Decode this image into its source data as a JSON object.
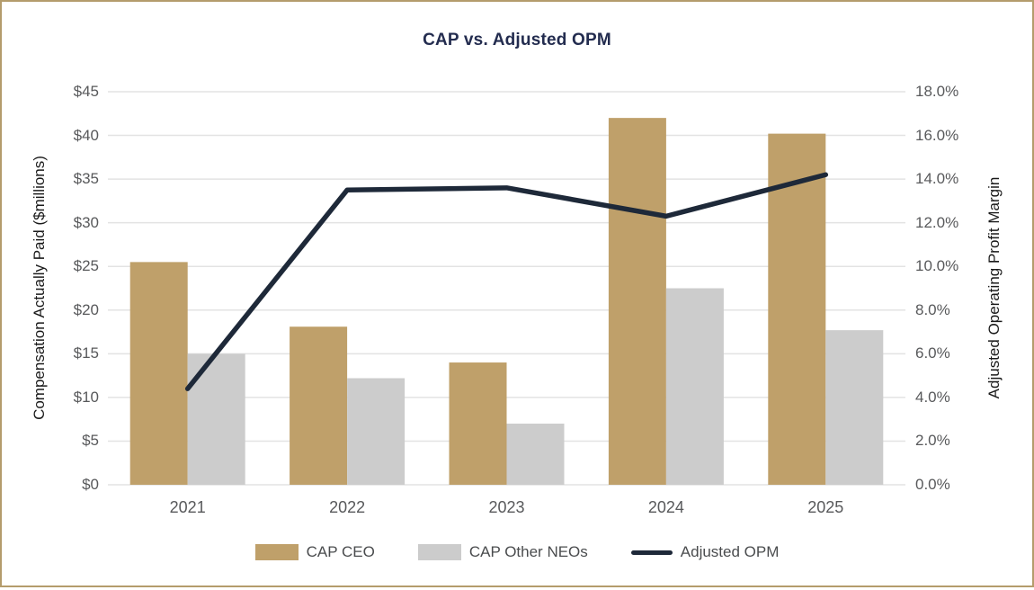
{
  "frame": {
    "border_color": "#b49c6c",
    "background": "#ffffff"
  },
  "chart_data": {
    "type": "combo",
    "title": "CAP vs. Adjusted OPM",
    "title_color": "#232c4f",
    "categories": [
      "2021",
      "2022",
      "2023",
      "2024",
      "2025"
    ],
    "series": [
      {
        "name": "CAP CEO",
        "type": "bar",
        "axis": "left",
        "color": "#bfa06a",
        "values": [
          25.5,
          18.1,
          14.0,
          42.0,
          40.2
        ]
      },
      {
        "name": "CAP Other NEOs",
        "type": "bar",
        "axis": "left",
        "color": "#cccccc",
        "values": [
          15.0,
          12.2,
          7.0,
          22.5,
          17.7
        ]
      },
      {
        "name": "Adjusted OPM",
        "type": "line",
        "axis": "right",
        "color": "#1e2939",
        "values": [
          4.4,
          13.5,
          13.6,
          12.3,
          14.2
        ]
      }
    ],
    "left_axis": {
      "label": "Compensation Actually Paid ($millions)",
      "min": 0,
      "max": 45,
      "step": 5,
      "ticks": [
        "$45",
        "$40",
        "$35",
        "$30",
        "$25",
        "$20",
        "$15",
        "$10",
        "$5",
        "$0"
      ]
    },
    "right_axis": {
      "label": "Adjusted Operating Profit Margin",
      "min": 0,
      "max": 18,
      "step": 2,
      "ticks": [
        "18.0%",
        "16.0%",
        "14.0%",
        "12.0%",
        "10.0%",
        "8.0%",
        "6.0%",
        "4.0%",
        "2.0%",
        "0.0%"
      ]
    },
    "grid": true,
    "gridline_color": "#e3e3e3",
    "tick_label_color": "#58595b",
    "axis_title_color": "#1a1a1a",
    "legend_position": "bottom"
  }
}
